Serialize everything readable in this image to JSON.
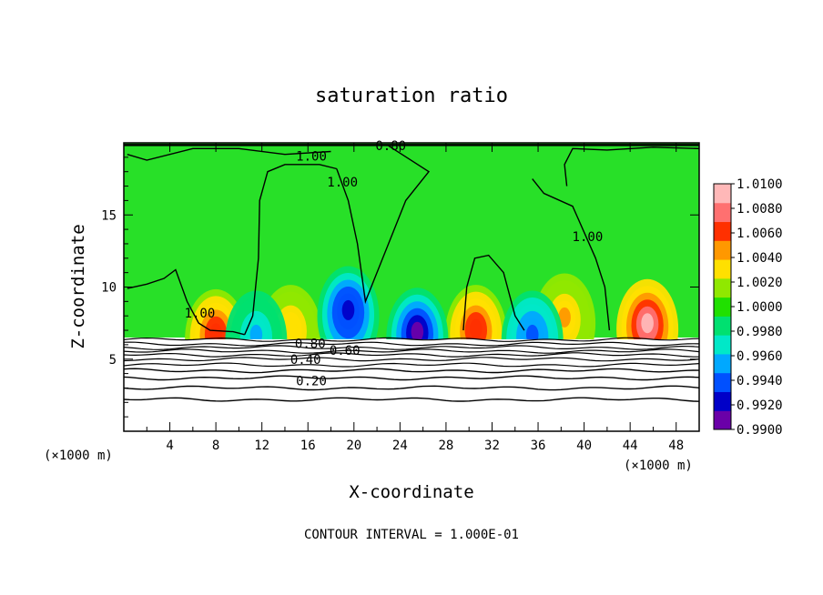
{
  "chart_data": {
    "type": "heatmap",
    "title": "saturation ratio",
    "xlabel": "X-coordinate",
    "ylabel": "Z-coordinate",
    "x_scale_label": "(×1000 m)",
    "y_scale_label": "(×1000 m)",
    "note": "CONTOUR INTERVAL = 1.000E-01",
    "xlim": [
      0,
      50
    ],
    "ylim": [
      0,
      20
    ],
    "x_ticks": [
      4,
      8,
      12,
      16,
      20,
      24,
      28,
      32,
      36,
      40,
      44,
      48
    ],
    "y_ticks": [
      5,
      10,
      15
    ],
    "colorbar": {
      "min": 0.99,
      "max": 1.01,
      "tick_labels": [
        "1.0100",
        "1.0080",
        "1.0060",
        "1.0040",
        "1.0020",
        "1.0000",
        "0.9980",
        "0.9960",
        "0.9940",
        "0.9920",
        "0.9900"
      ],
      "colors": [
        "#6a00a8",
        "#0000c8",
        "#0050ff",
        "#00a8ff",
        "#00e8c8",
        "#00e070",
        "#20e000",
        "#90e800",
        "#ffe000",
        "#ff9800",
        "#ff3000",
        "#ff7070",
        "#ffb8b8"
      ]
    },
    "cloud_base_z": 6.5,
    "contour_labels": [
      {
        "text": "1.00",
        "x": 16.3,
        "y": 19.1
      },
      {
        "text": "0.80",
        "x": 23.2,
        "y": 19.8
      },
      {
        "text": "1.00",
        "x": 19.0,
        "y": 17.3
      },
      {
        "text": "1.00",
        "x": 40.3,
        "y": 13.5
      },
      {
        "text": "1.00",
        "x": 6.6,
        "y": 8.2
      },
      {
        "text": "0.80",
        "x": 16.2,
        "y": 6.1
      },
      {
        "text": "0.60",
        "x": 19.2,
        "y": 5.6
      },
      {
        "text": "0.40",
        "x": 15.8,
        "y": 5.0
      },
      {
        "text": "0.20",
        "x": 16.3,
        "y": 3.5
      }
    ],
    "warm_maxima": [
      {
        "x": 8.0,
        "z": 6.9,
        "peak": 1.0065
      },
      {
        "x": 30.6,
        "z": 7.2,
        "peak": 1.0065
      },
      {
        "x": 45.5,
        "z": 7.6,
        "peak": 1.0095
      },
      {
        "x": 14.5,
        "z": 7.2,
        "peak": 1.0035
      },
      {
        "x": 38.3,
        "z": 8.0,
        "peak": 1.004
      }
    ],
    "dry_minima": [
      {
        "x": 25.5,
        "z": 7.0,
        "peak": 0.991
      },
      {
        "x": 19.5,
        "z": 8.5,
        "peak": 0.992
      },
      {
        "x": 35.5,
        "z": 6.8,
        "peak": 0.994
      },
      {
        "x": 11.5,
        "z": 6.8,
        "peak": 0.996
      }
    ]
  }
}
